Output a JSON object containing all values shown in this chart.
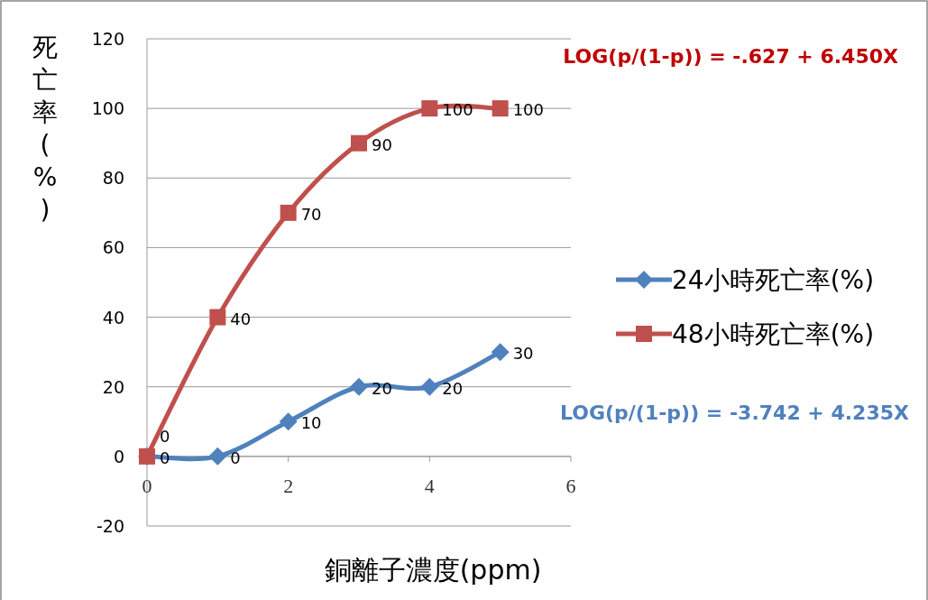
{
  "chart_data": {
    "type": "line",
    "xlabel": "銅離子濃度(ppm)",
    "ylabel": "死亡率(%)",
    "x": [
      0,
      1,
      2,
      3,
      4,
      5
    ],
    "series": [
      {
        "name": "24小時死亡率(%)",
        "color": "#4f81bd",
        "marker": "diamond",
        "values": [
          0,
          0,
          10,
          20,
          20,
          30
        ]
      },
      {
        "name": "48小時死亡率(%)",
        "color": "#c0504d",
        "marker": "square",
        "values": [
          0,
          40,
          70,
          90,
          100,
          100
        ]
      }
    ],
    "xlim": [
      0,
      6
    ],
    "xticks": [
      0,
      2,
      4,
      6
    ],
    "ylim": [
      -20,
      120
    ],
    "yticks": [
      -20,
      0,
      20,
      40,
      60,
      80,
      100,
      120
    ],
    "grid": "y",
    "legend": "right",
    "data_labels": true,
    "annotations": [
      "LOG(p/(1-p)) = -.627 + 6.450X",
      "LOG(p/(1-p)) = -3.742 + 4.235X"
    ]
  }
}
